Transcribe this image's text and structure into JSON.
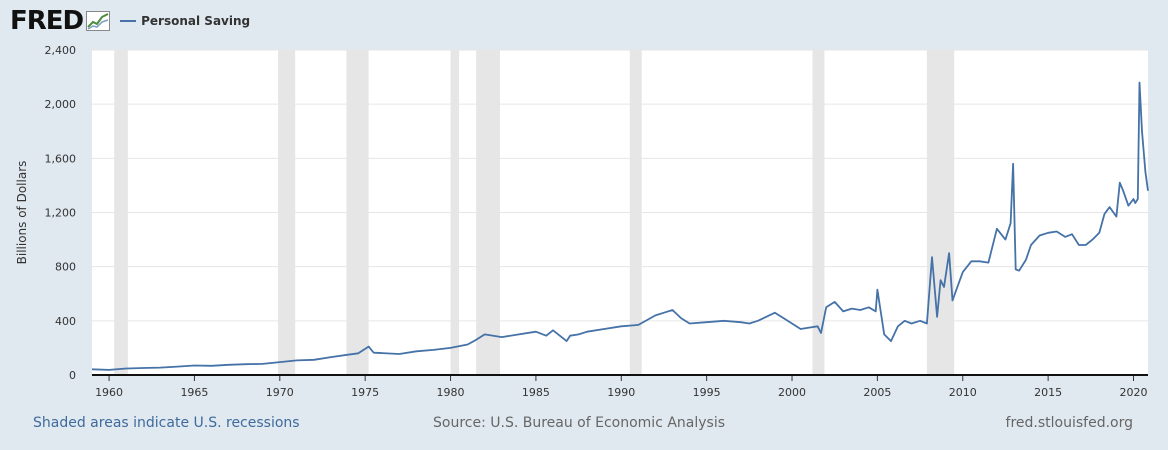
{
  "header": {
    "logo_text": "FRED",
    "logo_icon": "line-graph-icon",
    "legend_label": "Personal Saving",
    "series_color": "#4572a7"
  },
  "footer": {
    "recessions_note": "Shaded areas indicate U.S. recessions",
    "source": "Source: U.S. Bureau of Economic Analysis",
    "site": "fred.stlouisfed.org"
  },
  "chart_data": {
    "type": "line",
    "title": "",
    "xlabel": "",
    "ylabel": "Billions of Dollars",
    "xlim": [
      1959.0,
      2020.85
    ],
    "ylim": [
      0,
      2400
    ],
    "yticks": [
      0,
      400,
      800,
      1200,
      1600,
      2000,
      2400
    ],
    "ytick_labels": [
      "0",
      "400",
      "800",
      "1,200",
      "1,600",
      "2,000",
      "2,400"
    ],
    "xticks": [
      1960,
      1965,
      1970,
      1975,
      1980,
      1985,
      1990,
      1995,
      2000,
      2005,
      2010,
      2015,
      2020
    ],
    "grid": true,
    "legend": "top-left",
    "recessions": [
      [
        1960.3,
        1961.1
      ],
      [
        1969.9,
        1970.9
      ],
      [
        1973.9,
        1975.2
      ],
      [
        1980.0,
        1980.5
      ],
      [
        1981.5,
        1982.9
      ],
      [
        1990.5,
        1991.2
      ],
      [
        2001.2,
        2001.9
      ],
      [
        2007.9,
        2009.5
      ]
    ],
    "series": [
      {
        "name": "Personal Saving",
        "x": [
          1959.0,
          1960.0,
          1961.0,
          1962.0,
          1963.0,
          1964.0,
          1965.0,
          1966.0,
          1967.0,
          1968.0,
          1969.0,
          1970.0,
          1971.0,
          1972.0,
          1973.0,
          1974.0,
          1974.6,
          1975.2,
          1975.5,
          1976.0,
          1977.0,
          1978.0,
          1979.0,
          1980.0,
          1981.0,
          1981.5,
          1982.0,
          1983.0,
          1984.0,
          1985.0,
          1985.6,
          1986.0,
          1986.8,
          1987.0,
          1987.5,
          1988.0,
          1989.0,
          1990.0,
          1991.0,
          1992.0,
          1992.5,
          1993.0,
          1993.5,
          1994.0,
          1995.0,
          1996.0,
          1997.0,
          1997.5,
          1998.0,
          1999.0,
          1999.5,
          2000.0,
          2000.5,
          2001.0,
          2001.5,
          2001.7,
          2002.0,
          2002.5,
          2003.0,
          2003.5,
          2004.0,
          2004.5,
          2004.9,
          2005.0,
          2005.4,
          2005.8,
          2006.2,
          2006.6,
          2007.0,
          2007.5,
          2007.9,
          2008.2,
          2008.5,
          2008.7,
          2008.9,
          2009.2,
          2009.4,
          2009.6,
          2010.0,
          2010.5,
          2011.0,
          2011.5,
          2012.0,
          2012.5,
          2012.8,
          2012.95,
          2013.1,
          2013.3,
          2013.7,
          2014.0,
          2014.5,
          2015.0,
          2015.5,
          2016.0,
          2016.4,
          2016.8,
          2017.2,
          2017.6,
          2018.0,
          2018.3,
          2018.6,
          2019.0,
          2019.2,
          2019.4,
          2019.7,
          2020.0,
          2020.1,
          2020.25,
          2020.35,
          2020.5,
          2020.7,
          2020.85
        ],
        "values": [
          42,
          38,
          48,
          52,
          55,
          62,
          70,
          68,
          75,
          80,
          82,
          95,
          108,
          112,
          132,
          150,
          160,
          210,
          165,
          162,
          155,
          175,
          185,
          200,
          225,
          260,
          300,
          280,
          300,
          320,
          290,
          330,
          250,
          290,
          300,
          320,
          340,
          360,
          370,
          440,
          460,
          480,
          420,
          380,
          390,
          400,
          390,
          380,
          400,
          460,
          420,
          380,
          340,
          350,
          360,
          310,
          500,
          540,
          470,
          490,
          480,
          500,
          470,
          630,
          300,
          250,
          360,
          400,
          380,
          400,
          380,
          870,
          430,
          700,
          650,
          900,
          550,
          620,
          760,
          840,
          840,
          830,
          1080,
          1000,
          1120,
          1560,
          780,
          770,
          850,
          960,
          1030,
          1050,
          1060,
          1020,
          1040,
          960,
          960,
          1000,
          1050,
          1190,
          1240,
          1170,
          1420,
          1360,
          1250,
          1300,
          1270,
          1300,
          2160,
          1800,
          1500,
          1360
        ]
      }
    ]
  }
}
